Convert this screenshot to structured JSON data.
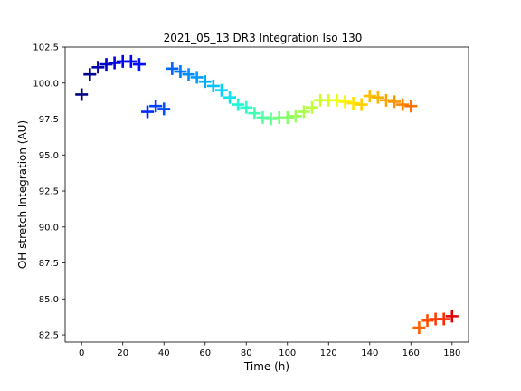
{
  "chart_data": {
    "type": "scatter",
    "title": "2021_05_13 DR3 Integration Iso 130",
    "xlabel": "Time (h)",
    "ylabel": "OH stretch Integration (AU)",
    "xlim": [
      -8,
      188
    ],
    "ylim": [
      82.0,
      102.5
    ],
    "xticks": [
      0,
      20,
      40,
      60,
      80,
      100,
      120,
      140,
      160,
      180
    ],
    "yticks": [
      82.5,
      85.0,
      87.5,
      90.0,
      92.5,
      95.0,
      97.5,
      100.0,
      102.5
    ],
    "xtick_labels": [
      "0",
      "20",
      "40",
      "60",
      "80",
      "100",
      "120",
      "140",
      "160",
      "180"
    ],
    "ytick_labels": [
      "82.5",
      "85.0",
      "87.5",
      "90.0",
      "92.5",
      "95.0",
      "97.5",
      "100.0",
      "102.5"
    ],
    "marker": "plus",
    "colormap": "jet",
    "grid": false,
    "x": [
      0,
      4,
      8,
      12,
      16,
      20,
      24,
      28,
      32,
      36,
      40,
      44,
      48,
      52,
      56,
      60,
      64,
      68,
      72,
      76,
      80,
      84,
      88,
      92,
      96,
      100,
      104,
      108,
      112,
      116,
      120,
      124,
      128,
      132,
      136,
      140,
      144,
      148,
      152,
      156,
      160,
      164,
      168,
      172,
      176,
      180
    ],
    "y": [
      99.2,
      100.6,
      101.1,
      101.3,
      101.4,
      101.5,
      101.5,
      101.3,
      98.0,
      98.4,
      98.2,
      101.0,
      100.8,
      100.6,
      100.4,
      100.1,
      99.8,
      99.5,
      99.0,
      98.5,
      98.3,
      97.9,
      97.6,
      97.5,
      97.6,
      97.6,
      97.7,
      98.0,
      98.3,
      98.8,
      98.8,
      98.8,
      98.7,
      98.6,
      98.5,
      99.1,
      99.0,
      98.8,
      98.7,
      98.5,
      98.4,
      83.0,
      83.5,
      83.6,
      83.6,
      83.8
    ],
    "colors": [
      "#000080",
      "#00008f",
      "#0000b2",
      "#0000c8",
      "#0000da",
      "#0000f1",
      "#0004ff",
      "#0010ff",
      "#002cff",
      "#0040ff",
      "#0050ff",
      "#0064ff",
      "#0078ff",
      "#008cff",
      "#009cff",
      "#00acff",
      "#00c0ff",
      "#00d4ff",
      "#0ae4ec",
      "#1ff8d7",
      "#2cffca",
      "#3fffb7",
      "#53ffa4",
      "#63ff94",
      "#76ff81",
      "#8aff6d",
      "#9aff5d",
      "#aaff4d",
      "#bdff3a",
      "#caff2c",
      "#d7ff1f",
      "#eaff0d",
      "#fbf100",
      "#ffe200",
      "#ffd000",
      "#ffbd00",
      "#ffb200",
      "#ffa300",
      "#ff9400",
      "#ff8200",
      "#ff6f00",
      "#ff6000",
      "#ff4e00",
      "#ff3b00",
      "#ff2900",
      "#e40000"
    ]
  }
}
